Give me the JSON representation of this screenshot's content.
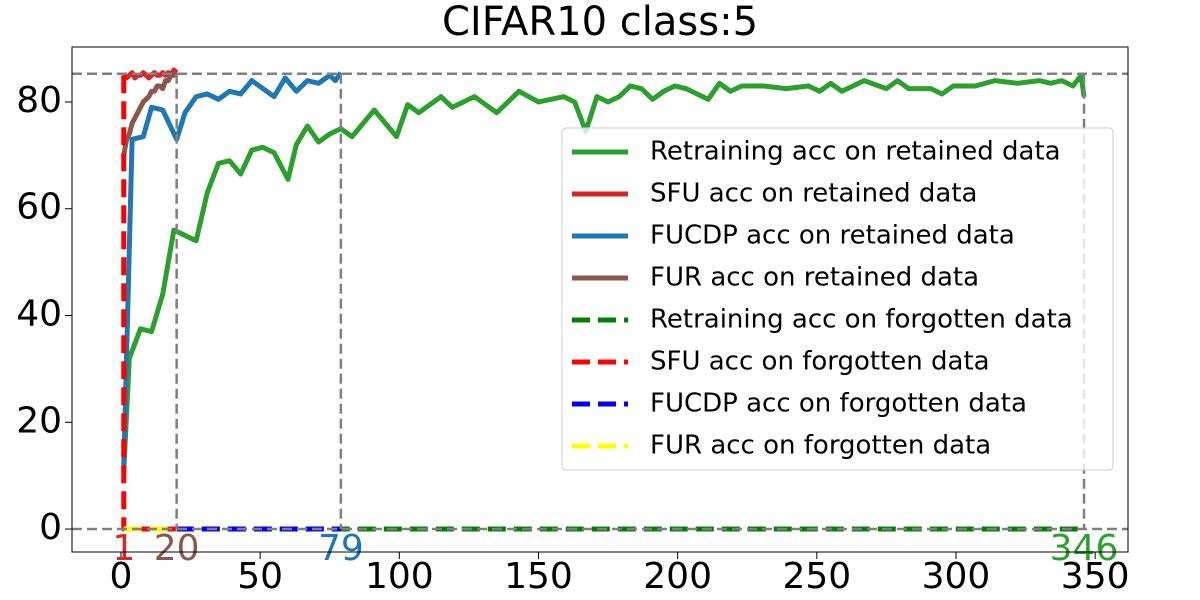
{
  "chart_data": {
    "type": "line",
    "title": "CIFAR10 class:5",
    "xlim": [
      -17.6,
      361.8
    ],
    "ylim": [
      -4.3,
      90.3
    ],
    "xticks": [
      0,
      50,
      100,
      150,
      200,
      250,
      300,
      350
    ],
    "yticks": [
      0,
      20,
      40,
      60,
      80
    ],
    "legend": "right",
    "hlines": [
      85.3,
      0
    ],
    "vlines": [
      20,
      79,
      346
    ],
    "annotations": [
      {
        "x": 1,
        "label": "1",
        "color": "#d62728"
      },
      {
        "x": 20,
        "label": "20",
        "color": "#8c564b"
      },
      {
        "x": 79,
        "label": "79",
        "color": "#1f77b4"
      },
      {
        "x": 346,
        "label": "346",
        "color": "#2ca02c"
      }
    ],
    "series": [
      {
        "name": "Retraining acc on retained data",
        "color": "#2ca02c",
        "dashed": false,
        "x": [
          1,
          3,
          7,
          11,
          15,
          19,
          23,
          27,
          31,
          35,
          39,
          43,
          47,
          51,
          55,
          60,
          63,
          67,
          71,
          75,
          79,
          83,
          91,
          99,
          103,
          107,
          115,
          119,
          127,
          135,
          143,
          150,
          159,
          163,
          167,
          171,
          175,
          179,
          183,
          187,
          191,
          195,
          199,
          203,
          207,
          211,
          215,
          219,
          223,
          231,
          239,
          247,
          251,
          255,
          259,
          263,
          267,
          275,
          279,
          283,
          291,
          295,
          299,
          307,
          314,
          322,
          330,
          334,
          338,
          342,
          345,
          346
        ],
        "values": [
          11,
          32,
          37.5,
          37,
          44,
          56,
          55,
          54,
          63,
          68.5,
          69,
          66.5,
          71,
          71.5,
          70.5,
          65.5,
          72,
          75.5,
          72.5,
          74,
          75,
          73.5,
          78.5,
          73.5,
          79.5,
          78,
          81,
          79,
          81,
          78,
          82,
          80,
          81,
          80,
          74.5,
          81,
          80,
          81,
          83,
          82.5,
          80.5,
          82,
          83,
          82.5,
          81.5,
          80.5,
          83.5,
          82,
          83,
          83,
          82.5,
          83,
          82,
          83.5,
          82,
          83,
          84,
          82.5,
          84,
          82.5,
          82.5,
          81.5,
          83,
          83,
          84,
          83.5,
          84,
          83.5,
          84,
          83,
          85,
          81
        ]
      },
      {
        "name": "SFU acc on retained data",
        "color": "#d62728",
        "dashed": false,
        "x": [
          1,
          2,
          3,
          4,
          5,
          6,
          7,
          8,
          9,
          10,
          11,
          12,
          13,
          14,
          15,
          16,
          17,
          18,
          19,
          20
        ],
        "values": [
          85,
          84.5,
          85,
          85.5,
          84.5,
          85,
          85,
          85.5,
          85,
          84.5,
          85,
          85.5,
          85,
          85,
          85.5,
          85,
          85.5,
          85,
          86,
          85.5
        ]
      },
      {
        "name": "FUCDP acc on retained data",
        "color": "#1f77b4",
        "dashed": false,
        "x": [
          1,
          4,
          8,
          11,
          15,
          20,
          23,
          27,
          31,
          35,
          39,
          43,
          47,
          51,
          55,
          59,
          63,
          67,
          71,
          75,
          77,
          79
        ],
        "values": [
          12,
          73,
          73.5,
          79,
          78.5,
          73,
          78,
          81,
          81.5,
          80.5,
          82,
          81.5,
          84,
          82.5,
          81,
          84.5,
          82,
          84,
          83.5,
          85,
          84,
          85.5
        ]
      },
      {
        "name": "FUR acc on retained data",
        "color": "#8c564b",
        "dashed": false,
        "x": [
          1,
          2,
          3,
          4,
          5,
          6,
          7,
          8,
          9,
          10,
          11,
          12,
          13,
          14,
          15,
          16,
          17,
          18,
          19,
          20
        ],
        "values": [
          70,
          73,
          74,
          76,
          77,
          78,
          79,
          80,
          80.5,
          81,
          82,
          82,
          83,
          83,
          82.5,
          84,
          84,
          85,
          85,
          85.5
        ]
      },
      {
        "name": "Retraining acc on forgotten data",
        "color": "#008000",
        "dashed": true,
        "x": [
          1,
          346
        ],
        "values": [
          0,
          0
        ]
      },
      {
        "name": "SFU acc on forgotten data",
        "color": "#ff0000",
        "dashed": true,
        "x": [
          1,
          1,
          20
        ],
        "values": [
          85,
          0,
          0
        ]
      },
      {
        "name": "FUCDP acc on forgotten data",
        "color": "#0000ff",
        "dashed": true,
        "x": [
          1,
          79
        ],
        "values": [
          0,
          0
        ]
      },
      {
        "name": "FUR acc on forgotten data",
        "color": "#ffff00",
        "dashed": true,
        "x": [
          1,
          20
        ],
        "values": [
          0,
          0
        ]
      }
    ]
  }
}
